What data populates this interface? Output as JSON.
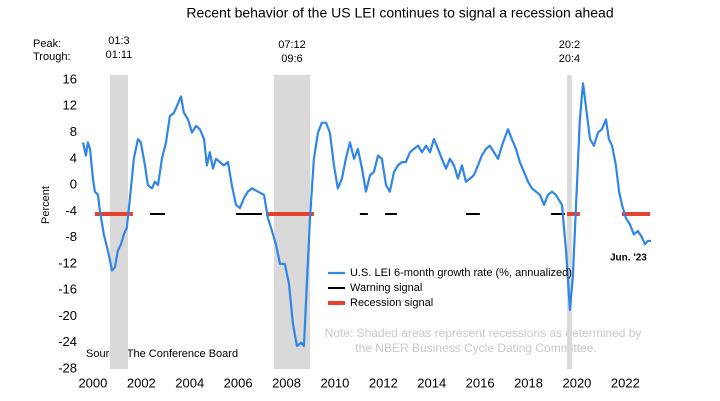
{
  "chart_data": {
    "type": "line",
    "title": "Recent behavior of the US LEI continues to signal a recession ahead",
    "ylabel": "Percent",
    "xlim": [
      1999.59,
      2023.2
    ],
    "ylim": [
      -28,
      16
    ],
    "xticks": [
      2000,
      2002,
      2004,
      2006,
      2008,
      2010,
      2012,
      2014,
      2016,
      2018,
      2020,
      2022
    ],
    "yticks": [
      16,
      12,
      8,
      4,
      0,
      -4,
      -8,
      -12,
      -16,
      -20,
      -24,
      -28
    ],
    "grid": false,
    "peak_label": "Peak:",
    "trough_label": "Trough:",
    "recessions": [
      {
        "start": 2000.7,
        "end": 2001.45,
        "peak": "01:3",
        "trough": "01:11"
      },
      {
        "start": 2007.48,
        "end": 2008.97,
        "peak": "07:12",
        "trough": "09:6"
      },
      {
        "start": 2019.59,
        "end": 2019.79,
        "peak": "20:2",
        "trough": "20:4"
      }
    ],
    "series": [
      {
        "name": "U.S. LEI 6-month growth rate (%, annualized)",
        "color": "#2f86e6",
        "x": [
          1999.59,
          1999.71,
          1999.79,
          1999.88,
          2000.0,
          2000.08,
          2000.21,
          2000.29,
          2000.45,
          2000.62,
          2000.79,
          2000.91,
          2001.03,
          2001.16,
          2001.28,
          2001.4,
          2001.53,
          2001.69,
          2001.86,
          2001.98,
          2002.15,
          2002.27,
          2002.44,
          2002.56,
          2002.69,
          2002.85,
          2003.02,
          2003.18,
          2003.35,
          2003.64,
          2003.76,
          2003.93,
          2004.09,
          2004.26,
          2004.42,
          2004.59,
          2004.71,
          2004.83,
          2004.96,
          2005.08,
          2005.25,
          2005.41,
          2005.58,
          2005.74,
          2005.91,
          2006.07,
          2006.24,
          2006.4,
          2006.57,
          2006.82,
          2007.07,
          2007.23,
          2007.4,
          2007.56,
          2007.73,
          2007.93,
          2008.1,
          2008.26,
          2008.43,
          2008.6,
          2008.72,
          2008.84,
          2008.97,
          2009.13,
          2009.3,
          2009.46,
          2009.63,
          2009.79,
          2009.96,
          2010.12,
          2010.29,
          2010.45,
          2010.62,
          2010.79,
          2010.95,
          2011.12,
          2011.28,
          2011.45,
          2011.61,
          2011.78,
          2011.94,
          2012.11,
          2012.27,
          2012.44,
          2012.6,
          2012.77,
          2012.93,
          2013.1,
          2013.26,
          2013.43,
          2013.6,
          2013.76,
          2013.93,
          2014.09,
          2014.26,
          2014.42,
          2014.59,
          2014.75,
          2014.92,
          2015.08,
          2015.25,
          2015.41,
          2015.58,
          2015.74,
          2015.91,
          2016.07,
          2016.24,
          2016.4,
          2016.57,
          2016.74,
          2016.9,
          2017.15,
          2017.31,
          2017.48,
          2017.64,
          2017.81,
          2017.98,
          2018.14,
          2018.31,
          2018.47,
          2018.64,
          2018.8,
          2018.97,
          2019.13,
          2019.38,
          2019.55,
          2019.71,
          2019.83,
          2020.0,
          2020.12,
          2020.25,
          2020.37,
          2020.54,
          2020.7,
          2020.87,
          2021.03,
          2021.2,
          2021.32,
          2021.45,
          2021.61,
          2021.74,
          2021.86,
          2022.02,
          2022.19,
          2022.35,
          2022.52,
          2022.69,
          2022.81,
          2022.93,
          2023.06
        ],
        "values": [
          6.5,
          4.5,
          6.5,
          5.5,
          1,
          -1,
          -1.5,
          -4,
          -7.5,
          -10,
          -13,
          -12.5,
          -10,
          -9,
          -7.5,
          -6.5,
          -2,
          4,
          7,
          6.5,
          3,
          0,
          -0.5,
          0.5,
          0,
          4,
          6.5,
          10.5,
          11,
          13.5,
          11,
          10,
          8,
          9,
          8.5,
          7,
          3,
          5,
          2.5,
          4,
          3.5,
          3,
          3.5,
          0,
          -3,
          -3.5,
          -2,
          -1,
          -0.5,
          -1,
          -1.5,
          -5,
          -7,
          -9,
          -12,
          -12,
          -15,
          -21,
          -24.5,
          -24,
          -24.5,
          -15,
          -5,
          4,
          8,
          9.5,
          9.5,
          8,
          3,
          -0.5,
          1,
          4,
          6.5,
          4,
          5.5,
          2.5,
          -1,
          1.5,
          2,
          4.5,
          4,
          0,
          -1,
          2,
          3,
          3.5,
          3.5,
          5,
          5.5,
          6,
          5,
          6,
          5,
          7,
          5.5,
          4,
          2.5,
          4,
          3,
          1,
          3,
          0.5,
          1,
          1.5,
          3,
          4.5,
          5.5,
          6,
          5,
          4,
          6,
          8.5,
          7,
          5.5,
          3.5,
          2,
          0.5,
          -0.5,
          -1,
          -1.5,
          -3,
          -1.5,
          -1,
          -1.5,
          -3,
          -10,
          -19,
          -14,
          0,
          10,
          15.5,
          12,
          7,
          6,
          8,
          8.5,
          10,
          7,
          6,
          3,
          -1,
          -3,
          -5,
          -6,
          -7.5,
          -7,
          -8,
          -9,
          -8.5,
          -8.5
        ]
      }
    ],
    "signals": [
      {
        "name": "Warning signal",
        "color": "#000000",
        "level": -4.4,
        "periods": [
          [
            2002.36,
            2002.98
          ],
          [
            2005.91,
            2006.98
          ],
          [
            2011.03,
            2011.36
          ],
          [
            2012.07,
            2012.56
          ],
          [
            2015.41,
            2015.99
          ],
          [
            2018.93,
            2019.5
          ]
        ]
      },
      {
        "name": "Recession signal",
        "color": "#e8412d",
        "level": -4.4,
        "periods": [
          [
            2000.08,
            2001.65
          ],
          [
            2007.15,
            2009.13
          ],
          [
            2019.59,
            2020.12
          ],
          [
            2021.86,
            2023.02
          ]
        ]
      }
    ],
    "end_label": "Jun. '23",
    "source": "Source: The Conference Board",
    "note": [
      "Note: Shaded areas represent recessions as determined by",
      "the NBER Business Cycle Dating Committee."
    ]
  }
}
